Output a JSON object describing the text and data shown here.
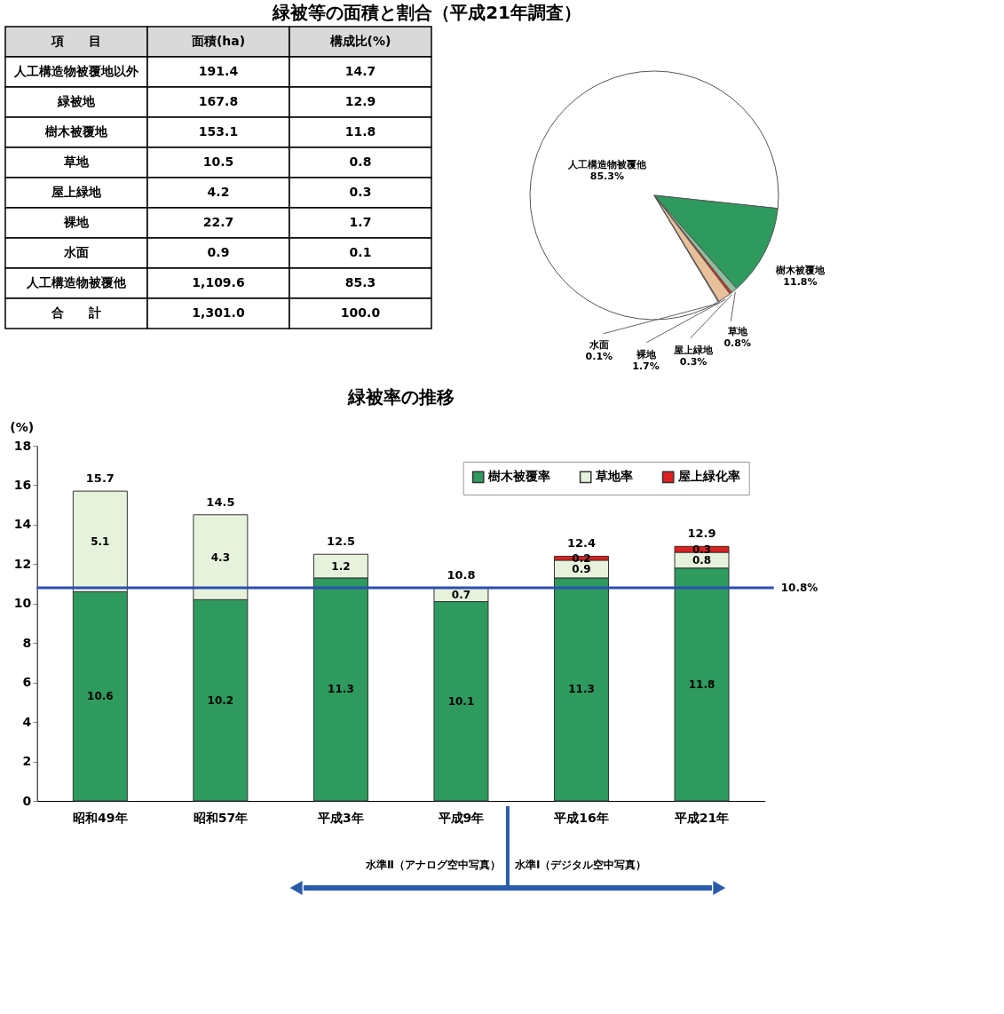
{
  "chart_data": [
    {
      "type": "other",
      "title": "緑被等の面積と割合（平成21年調査）",
      "ylabel": "項　　目",
      "categories": [
        "人工構造物被覆地以外",
        "緑被地",
        "樹木被覆地",
        "草地",
        "屋上緑地",
        "裸地",
        "水面",
        "人工構造物被覆他",
        "合　　計"
      ],
      "series": [
        {
          "name": "面積(ha)",
          "values": [
            191.4,
            167.8,
            153.1,
            10.5,
            4.2,
            22.7,
            0.9,
            1109.6,
            1301.0
          ],
          "value_labels": [
            "191.4",
            "167.8",
            "153.1",
            "10.5",
            "4.2",
            "22.7",
            "0.9",
            "1,109.6",
            "1,301.0"
          ]
        },
        {
          "name": "構成比(%)",
          "values": [
            14.7,
            12.9,
            11.8,
            0.8,
            0.3,
            1.7,
            0.1,
            85.3,
            100.0
          ],
          "value_labels": [
            "14.7",
            "12.9",
            "11.8",
            "0.8",
            "0.3",
            "1.7",
            "0.1",
            "85.3",
            "100.0"
          ]
        }
      ]
    },
    {
      "type": "pie",
      "categories": [
        "人工構造物被覆他",
        "樹木被覆地",
        "草地",
        "屋上緑地",
        "裸地",
        "水面"
      ],
      "values": [
        85.3,
        11.8,
        0.8,
        0.3,
        1.7,
        0.1
      ],
      "colors": [
        "#ffffff",
        "#2e9a5e",
        "#8fbf9f",
        "#e02828",
        "#e8c09a",
        "#f4f4f4"
      ],
      "value_labels": [
        "85.3%",
        "11.8%",
        "0.8%",
        "0.3%",
        "1.7%",
        "0.1%"
      ]
    },
    {
      "type": "bar",
      "title": "緑被率の推移",
      "ylabel": "(%)",
      "stacked": true,
      "data_labels": true,
      "legend": "top right",
      "categories": [
        "昭和49年",
        "昭和57年",
        "平成3年",
        "平成9年",
        "平成16年",
        "平成21年"
      ],
      "series": [
        {
          "name": "樹木被覆率",
          "color": "#2e9a5e",
          "values": [
            10.6,
            10.2,
            11.3,
            10.1,
            11.3,
            11.8
          ]
        },
        {
          "name": "草地率",
          "color": "#e6f2dc",
          "values": [
            5.1,
            4.3,
            1.2,
            0.7,
            0.9,
            0.8
          ]
        },
        {
          "name": "屋上緑化率",
          "color": "#e02020",
          "values": [
            null,
            null,
            null,
            null,
            0.2,
            0.3
          ]
        }
      ],
      "totals": [
        "15.7",
        "14.5",
        "12.5",
        "10.8",
        "12.4",
        "12.9"
      ],
      "ylim": [
        0,
        18
      ],
      "yticks": [
        0,
        2,
        4,
        6,
        8,
        10,
        12,
        14,
        16,
        18
      ],
      "ref_lines": [
        {
          "axis": "y",
          "value": 10.8,
          "label": "10.8%",
          "color": "#2a4fb0"
        }
      ],
      "annotations": [
        "水準Ⅱ（アナログ空中写真）",
        "水準Ⅰ（デジタル空中写真）"
      ]
    }
  ]
}
